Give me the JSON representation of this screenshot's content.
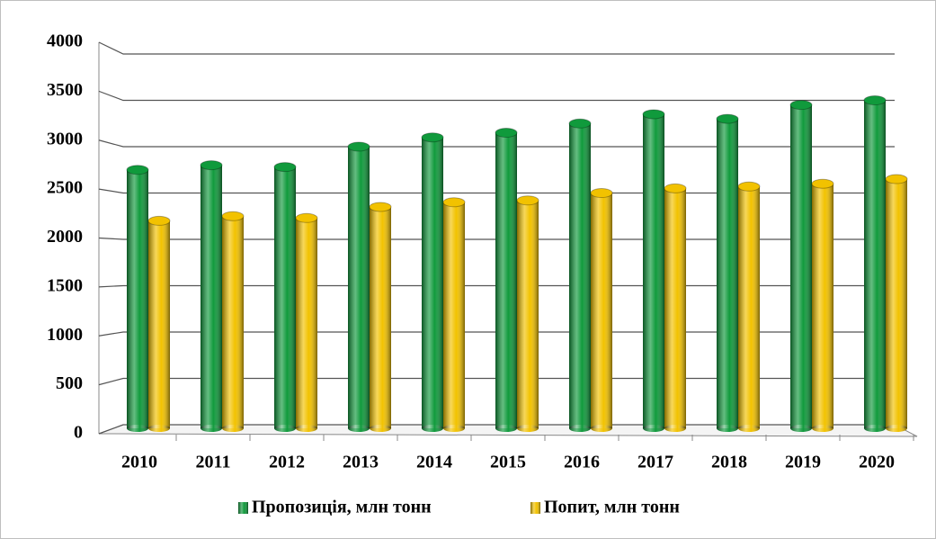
{
  "chart_data": {
    "type": "bar",
    "categories": [
      "2010",
      "2011",
      "2012",
      "2013",
      "2014",
      "2015",
      "2016",
      "2017",
      "2018",
      "2019",
      "2020"
    ],
    "series": [
      {
        "name": "Пропозиція, млн тонн",
        "color": "#109a3c",
        "values": [
          2750,
          2800,
          2780,
          3000,
          3100,
          3150,
          3250,
          3350,
          3300,
          3450,
          3500
        ]
      },
      {
        "name": "Попит, млн тонн",
        "color": "#f2c200",
        "values": [
          2200,
          2250,
          2230,
          2350,
          2400,
          2420,
          2500,
          2550,
          2570,
          2600,
          2650
        ]
      }
    ],
    "ylim": [
      0,
      4000
    ],
    "yticks": [
      0,
      500,
      1000,
      1500,
      2000,
      2500,
      3000,
      3500,
      4000
    ],
    "grid": true,
    "legend": "bottom"
  }
}
